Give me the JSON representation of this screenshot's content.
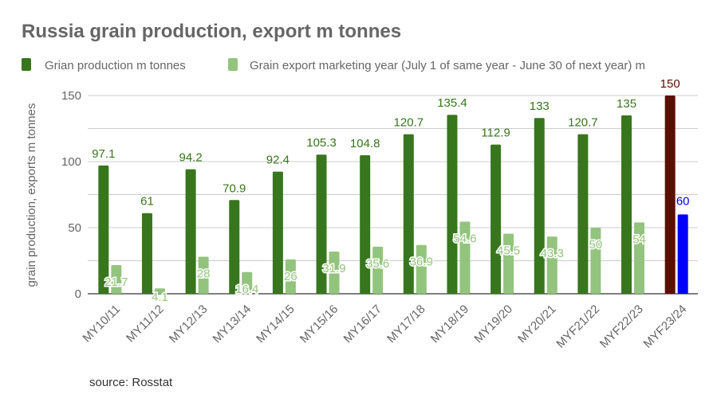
{
  "chart_data": {
    "type": "bar",
    "title": "Russia grain production, export m tonnes",
    "ylabel": "grain production, exports m tonnes",
    "xlabel": "",
    "ylim": [
      0,
      150
    ],
    "yticks": [
      0,
      50,
      100,
      150
    ],
    "grid": true,
    "legend_placement": "top",
    "categories": [
      "MY10/11",
      "MY11/12",
      "MY12/13",
      "MY13/14",
      "MY14/15",
      "MY15/16",
      "MY16/17",
      "MY17/18",
      "MY18/19",
      "MY19/20",
      "MY20/21",
      "MYF21/22",
      "MYF22/23",
      "MYF23/24"
    ],
    "series": [
      {
        "name": "Grian production m tonnes",
        "color": "#38761d",
        "label_color": "#38761d",
        "values": [
          97.1,
          61,
          94.2,
          70.9,
          92.4,
          105.3,
          104.8,
          120.7,
          135.4,
          112.9,
          133,
          120.7,
          135,
          150
        ],
        "last_point_color": "#5b0f00"
      },
      {
        "name": "Grain export marketing year (July 1 of same year - June 30 of next year) m",
        "color": "#93c47d",
        "label_color": "#93c47d",
        "values": [
          21.7,
          4.1,
          28,
          16.4,
          26,
          31.9,
          35.6,
          36.9,
          54.6,
          45.5,
          43.3,
          50,
          54,
          60
        ],
        "last_point_color": "#0000ff"
      }
    ],
    "source": "source: Rosstat"
  }
}
